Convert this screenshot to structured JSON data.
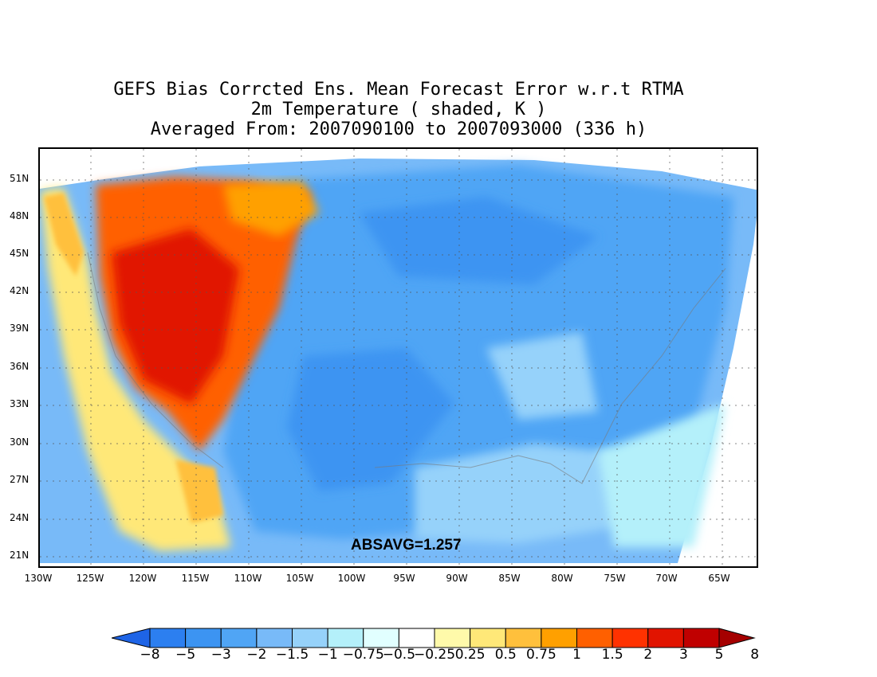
{
  "title": {
    "line1": "GEFS Bias Corrcted Ens. Mean Forecast Error w.r.t RTMA",
    "line2": "2m Temperature ( shaded, K )",
    "line3": "Averaged From: 2007090100 to 2007093000 (336 h)"
  },
  "lat_labels": [
    "51N",
    "48N",
    "45N",
    "42N",
    "39N",
    "36N",
    "33N",
    "30N",
    "27N",
    "24N",
    "21N"
  ],
  "lon_labels": [
    "130W",
    "125W",
    "120W",
    "115W",
    "110W",
    "105W",
    "100W",
    "95W",
    "90W",
    "85W",
    "80W",
    "75W",
    "70W",
    "65W"
  ],
  "absavg": "ABSAVG=1.257",
  "colorbar": {
    "labels": [
      "−8",
      "−5",
      "−3",
      "−2",
      "−1.5",
      "−1",
      "−0.75",
      "−0.5",
      "−0.25",
      "0.25",
      "0.5",
      "0.75",
      "1",
      "1.5",
      "2",
      "3",
      "5",
      "8"
    ],
    "colors": [
      "#1e64e6",
      "#2c7ff0",
      "#3c94f2",
      "#50a5f5",
      "#78baf8",
      "#96d2fa",
      "#b4f0fa",
      "#e1ffff",
      "#ffffff",
      "#fffaaa",
      "#ffe878",
      "#ffc03c",
      "#ffa000",
      "#ff6000",
      "#ff3200",
      "#e11400",
      "#c00000",
      "#a50000"
    ]
  },
  "colors": {
    "ocean_light": "#b4f0fa",
    "land_blue": "#50a5f5",
    "west_warm": "#ff6000",
    "west_hot": "#e11400"
  }
}
